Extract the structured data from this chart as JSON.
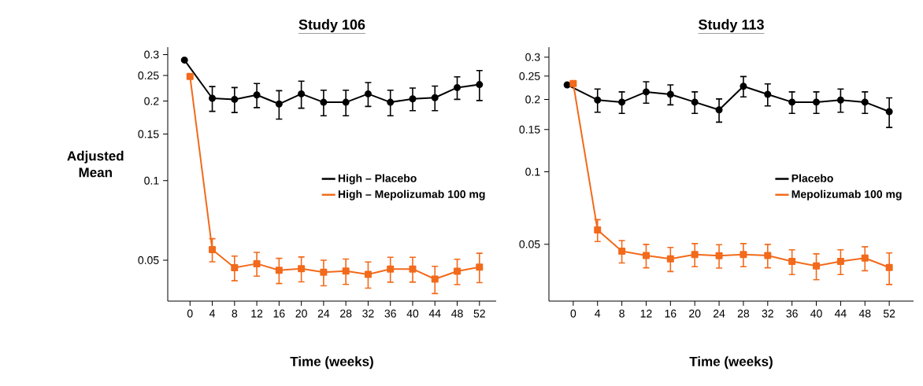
{
  "chart_data": [
    {
      "type": "line",
      "title": "Study 106",
      "xlabel": "Time (weeks)",
      "ylabel": "Adjusted Mean",
      "log": "y",
      "legend": "right",
      "xlim": [
        -4,
        55
      ],
      "ylim": [
        0.035,
        0.32
      ],
      "xticks": [
        0,
        4,
        8,
        12,
        16,
        20,
        24,
        28,
        32,
        36,
        40,
        44,
        48,
        52
      ],
      "yticks": [
        0.05,
        0.1,
        0.15,
        0.2,
        0.25,
        0.3
      ],
      "series": [
        {
          "name": "High – Placebo",
          "color": "#000000",
          "marker": "circle",
          "x": [
            -1,
            4,
            8,
            12,
            16,
            20,
            24,
            28,
            32,
            36,
            40,
            44,
            48,
            52
          ],
          "values": [
            0.286,
            0.205,
            0.203,
            0.211,
            0.195,
            0.213,
            0.198,
            0.198,
            0.213,
            0.198,
            0.204,
            0.206,
            0.225,
            0.231
          ],
          "errors": [
            null,
            0.022,
            0.022,
            0.022,
            0.024,
            0.025,
            0.022,
            0.022,
            0.022,
            0.022,
            0.02,
            0.022,
            0.022,
            0.03
          ]
        },
        {
          "name": "High – Mepolizumab 100 mg",
          "color": "#f26a1b",
          "marker": "square",
          "x": [
            0,
            4,
            8,
            12,
            16,
            20,
            24,
            28,
            32,
            36,
            40,
            44,
            48,
            52
          ],
          "values": [
            0.248,
            0.0548,
            0.0468,
            0.0485,
            0.0458,
            0.0464,
            0.045,
            0.0455,
            0.0442,
            0.0463,
            0.0463,
            0.0424,
            0.0454,
            0.0471
          ],
          "errors": [
            null,
            0.0055,
            0.005,
            0.005,
            0.005,
            0.005,
            0.005,
            0.005,
            0.005,
            0.005,
            0.005,
            0.005,
            0.005,
            0.006
          ]
        }
      ]
    },
    {
      "type": "line",
      "title": "Study 113",
      "xlabel": "Time (weeks)",
      "log": "y",
      "legend": "right",
      "xlim": [
        -4,
        56
      ],
      "ylim": [
        0.029,
        0.33
      ],
      "xticks": [
        0,
        4,
        8,
        12,
        16,
        20,
        24,
        28,
        32,
        36,
        40,
        44,
        48,
        52
      ],
      "yticks": [
        0.05,
        0.1,
        0.15,
        0.2,
        0.25,
        0.3
      ],
      "series": [
        {
          "name": "Placebo",
          "color": "#000000",
          "marker": "circle",
          "x": [
            -1,
            4,
            8,
            12,
            16,
            20,
            24,
            28,
            32,
            36,
            40,
            44,
            48,
            52
          ],
          "values": [
            0.23,
            0.199,
            0.195,
            0.215,
            0.21,
            0.195,
            0.181,
            0.227,
            0.21,
            0.195,
            0.195,
            0.199,
            0.195,
            0.178
          ],
          "errors": [
            null,
            0.022,
            0.02,
            0.022,
            0.02,
            0.02,
            0.02,
            0.022,
            0.022,
            0.02,
            0.02,
            0.022,
            0.02,
            0.025
          ]
        },
        {
          "name": "Mepolizumab 100 mg",
          "color": "#f26a1b",
          "marker": "square",
          "x": [
            0,
            4,
            8,
            12,
            16,
            20,
            24,
            28,
            32,
            36,
            40,
            44,
            48,
            52
          ],
          "values": [
            0.233,
            0.0573,
            0.0468,
            0.0449,
            0.0435,
            0.0453,
            0.0448,
            0.0453,
            0.0449,
            0.0424,
            0.0406,
            0.0424,
            0.0438,
            0.04
          ],
          "errors": [
            null,
            0.006,
            0.005,
            0.005,
            0.005,
            0.005,
            0.005,
            0.005,
            0.005,
            0.005,
            0.005,
            0.005,
            0.005,
            0.006
          ]
        }
      ]
    }
  ]
}
